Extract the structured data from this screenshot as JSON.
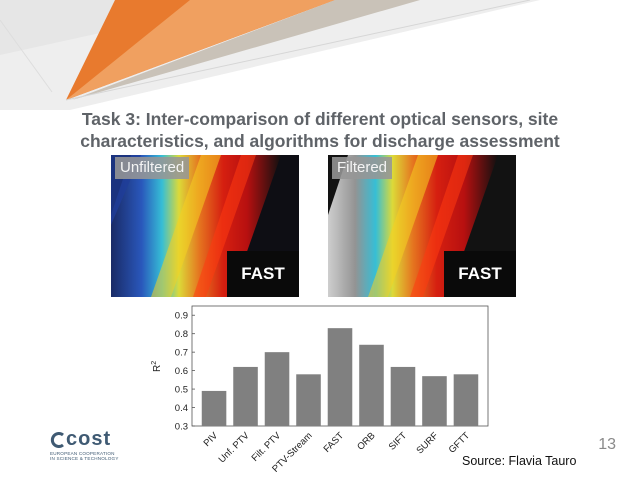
{
  "slide": {
    "title": "Task 3: Inter-comparison of different optical sensors, site characteristics, and algorithms for discharge assessment",
    "page_number": "13",
    "source": "Source: Flavia Tauro"
  },
  "images": {
    "left_label": "Unfiltered",
    "right_label": "Filtered",
    "left_badge": "FAST",
    "right_badge": "FAST"
  },
  "logo": {
    "word": "cost",
    "subtitle_line1": "EUROPEAN COOPERATION",
    "subtitle_line2": "IN SCIENCE & TECHNOLOGY"
  },
  "colors": {
    "bar": "#808080",
    "title": "#5f6368",
    "orange": "#e87a2e"
  },
  "chart_data": {
    "type": "bar",
    "categories": [
      "PIV",
      "Unf. PTV",
      "Filt. PTV",
      "PTV-Stream",
      "FAST",
      "ORB",
      "SIFT",
      "SURF",
      "GFTT"
    ],
    "values": [
      0.49,
      0.62,
      0.7,
      0.58,
      0.83,
      0.74,
      0.62,
      0.57,
      0.58
    ],
    "ylabel": "R2",
    "ylim": [
      0.3,
      0.95
    ],
    "yticks": [
      0.3,
      0.4,
      0.5,
      0.6,
      0.7,
      0.8,
      0.9
    ],
    "grid": false
  }
}
